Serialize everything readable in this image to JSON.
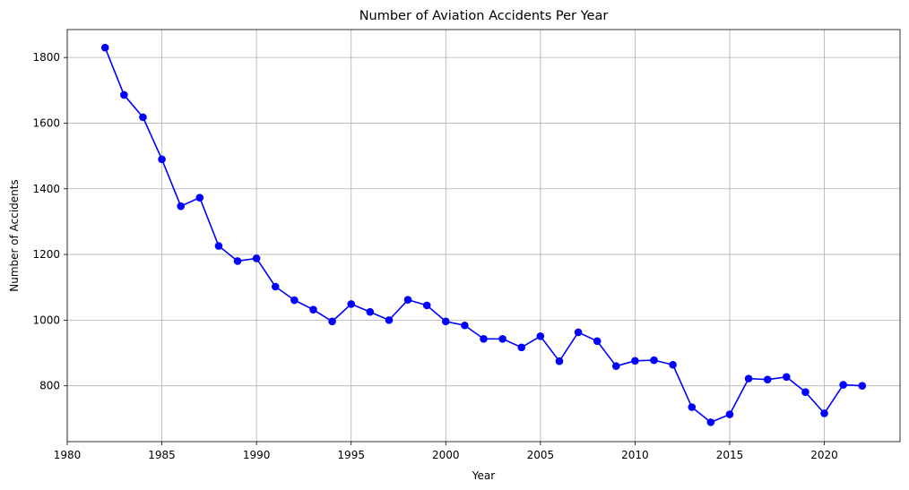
{
  "chart_data": {
    "type": "line",
    "title": "Number of Aviation Accidents Per Year",
    "xlabel": "Year",
    "ylabel": "Number of Accidents",
    "xlim": [
      1980,
      2024
    ],
    "ylim": [
      630,
      1885
    ],
    "xticks": [
      1980,
      1985,
      1990,
      1995,
      2000,
      2005,
      2010,
      2015,
      2020
    ],
    "yticks": [
      800,
      1000,
      1200,
      1400,
      1600,
      1800
    ],
    "grid": true,
    "line_color": "#0000ff",
    "marker": "circle",
    "series": [
      {
        "x": [
          1982,
          1983,
          1984,
          1985,
          1986,
          1987,
          1988,
          1989,
          1990,
          1991,
          1992,
          1993,
          1994,
          1995,
          1996,
          1997,
          1998,
          1999,
          2000,
          2001,
          2002,
          2003,
          2004,
          2005,
          2006,
          2007,
          2008,
          2009,
          2010,
          2011,
          2012,
          2013,
          2014,
          2015,
          2016,
          2017,
          2018,
          2019,
          2020,
          2021,
          2022
        ],
        "y": [
          1830,
          1686,
          1618,
          1490,
          1347,
          1373,
          1226,
          1180,
          1188,
          1102,
          1061,
          1032,
          996,
          1049,
          1025,
          1000,
          1062,
          1045,
          996,
          984,
          943,
          943,
          917,
          951,
          875,
          963,
          936,
          860,
          876,
          878,
          864,
          735,
          689,
          713,
          822,
          819,
          827,
          781,
          716,
          803,
          800
        ]
      }
    ]
  }
}
